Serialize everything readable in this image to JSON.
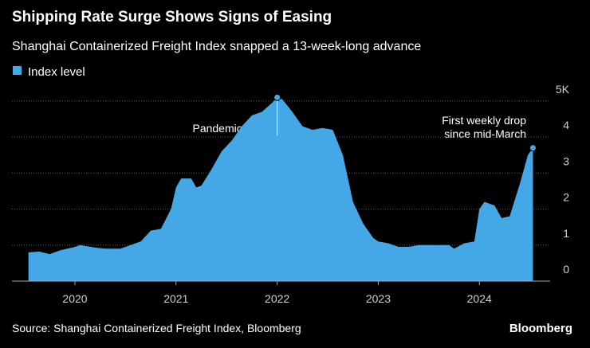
{
  "chart_data": {
    "type": "area",
    "title": "Shipping Rate Surge Shows Signs of Easing",
    "subtitle": "Shanghai Containerized Freight Index snapped a 13-week-long advance",
    "source": "Source: Shanghai Containerized Freight Index, Bloomberg",
    "brand": "Bloomberg",
    "annotations": [
      "Pandemic peak",
      "First weekly drop",
      "since mid-March"
    ],
    "grid": true,
    "xlim": [
      2019.377,
      2024.7
    ],
    "xticks": [
      2020,
      2021,
      2022,
      2023,
      2024
    ],
    "ylim": [
      0,
      5.35
    ],
    "yticks": [
      0,
      1,
      2,
      3,
      4,
      {
        "value": 5,
        "label": "5K"
      }
    ],
    "series": [
      {
        "name": "Index level",
        "color": "#45a8e6",
        "x": [
          2019.54,
          2019.65,
          2019.75,
          2019.85,
          2020.0,
          2020.05,
          2020.2,
          2020.3,
          2020.45,
          2020.55,
          2020.65,
          2020.75,
          2020.85,
          2020.95,
          2021.0,
          2021.05,
          2021.15,
          2021.2,
          2021.25,
          2021.35,
          2021.45,
          2021.55,
          2021.65,
          2021.75,
          2021.85,
          2021.95,
          2022.0,
          2022.05,
          2022.15,
          2022.25,
          2022.35,
          2022.45,
          2022.55,
          2022.65,
          2022.75,
          2022.85,
          2022.95,
          2023.0,
          2023.1,
          2023.2,
          2023.3,
          2023.4,
          2023.5,
          2023.6,
          2023.7,
          2023.75,
          2023.85,
          2023.95,
          2024.0,
          2024.05,
          2024.15,
          2024.22,
          2024.3,
          2024.4,
          2024.48,
          2024.53
        ],
        "values": [
          0.8,
          0.82,
          0.75,
          0.85,
          0.95,
          1.0,
          0.93,
          0.9,
          0.9,
          1.0,
          1.1,
          1.4,
          1.45,
          2.0,
          2.6,
          2.85,
          2.85,
          2.6,
          2.65,
          3.1,
          3.6,
          3.9,
          4.3,
          4.6,
          4.7,
          4.95,
          5.1,
          5.05,
          4.7,
          4.3,
          4.2,
          4.25,
          4.2,
          3.5,
          2.2,
          1.6,
          1.2,
          1.1,
          1.05,
          0.95,
          0.95,
          1.0,
          1.0,
          1.0,
          1.0,
          0.9,
          1.05,
          1.1,
          2.0,
          2.2,
          2.1,
          1.75,
          1.8,
          2.7,
          3.5,
          3.7
        ]
      }
    ]
  }
}
